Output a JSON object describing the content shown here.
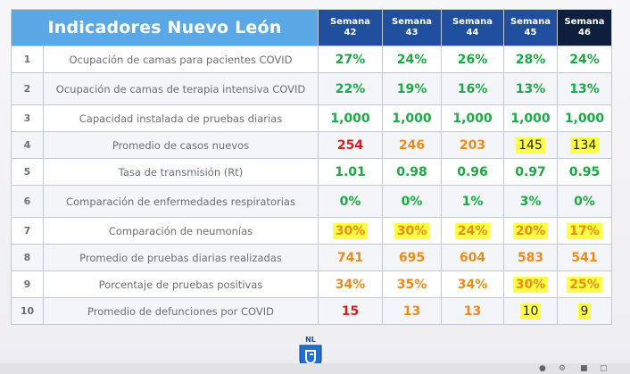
{
  "title": "Indicadores Nuevo León",
  "weeks": [
    {
      "label": "Semana",
      "num": "42"
    },
    {
      "label": "Semana",
      "num": "43"
    },
    {
      "label": "Semana",
      "num": "44"
    },
    {
      "label": "Semana",
      "num": "45"
    },
    {
      "label": "Semana",
      "num": "46"
    }
  ],
  "rows": [
    {
      "n": "1",
      "label": "Ocupación de camas para pacientes COVID",
      "values": [
        "27%",
        "24%",
        "26%",
        "28%",
        "24%"
      ],
      "colors": [
        "green",
        "green",
        "green",
        "green",
        "green"
      ],
      "highlight": [
        false,
        false,
        false,
        false,
        false
      ]
    },
    {
      "n": "2",
      "label": "Ocupación de camas de terapia intensiva COVID",
      "values": [
        "22%",
        "19%",
        "16%",
        "13%",
        "13%"
      ],
      "colors": [
        "green",
        "green",
        "green",
        "green",
        "green"
      ],
      "highlight": [
        false,
        false,
        false,
        false,
        false
      ]
    },
    {
      "n": "3",
      "label": "Capacidad instalada de pruebas diarias",
      "values": [
        "1,000",
        "1,000",
        "1,000",
        "1,000",
        "1,000"
      ],
      "colors": [
        "green",
        "green",
        "green",
        "green",
        "green"
      ],
      "highlight": [
        false,
        false,
        false,
        false,
        false
      ]
    },
    {
      "n": "4",
      "label": "Promedio de casos nuevos",
      "values": [
        "254",
        "246",
        "203",
        "145",
        "134"
      ],
      "colors": [
        "red",
        "orange",
        "orange",
        "dark",
        "dark"
      ],
      "highlight": [
        false,
        false,
        false,
        true,
        true
      ]
    },
    {
      "n": "5",
      "label": "Tasa de transmisión (Rt)",
      "values": [
        "1.01",
        "0.98",
        "0.96",
        "0.97",
        "0.95"
      ],
      "colors": [
        "green",
        "green",
        "green",
        "green",
        "green"
      ],
      "highlight": [
        false,
        false,
        false,
        false,
        false
      ]
    },
    {
      "n": "6",
      "label": "Comparación de enfermedades respiratorias",
      "values": [
        "0%",
        "0%",
        "1%",
        "3%",
        "0%"
      ],
      "colors": [
        "green",
        "green",
        "green",
        "green",
        "green"
      ],
      "highlight": [
        false,
        false,
        false,
        false,
        false
      ]
    },
    {
      "n": "7",
      "label": "Comparación de neumonías",
      "values": [
        "30%",
        "30%",
        "24%",
        "20%",
        "17%"
      ],
      "colors": [
        "orange",
        "orange",
        "orange",
        "orange",
        "orange"
      ],
      "highlight": [
        true,
        true,
        true,
        true,
        true
      ]
    },
    {
      "n": "8",
      "label": "Promedio de pruebas diarias realizadas",
      "values": [
        "741",
        "695",
        "604",
        "583",
        "541"
      ],
      "colors": [
        "orange",
        "orange",
        "orange",
        "orange",
        "orange"
      ],
      "highlight": [
        false,
        false,
        false,
        false,
        false
      ]
    },
    {
      "n": "9",
      "label": "Porcentaje de pruebas positivas",
      "values": [
        "34%",
        "35%",
        "34%",
        "30%",
        "25%"
      ],
      "colors": [
        "orange",
        "orange",
        "orange",
        "orange",
        "orange"
      ],
      "highlight": [
        false,
        false,
        false,
        true,
        true
      ]
    },
    {
      "n": "10",
      "label": "Promedio de defunciones por COVID",
      "values": [
        "15",
        "13",
        "13",
        "10",
        "9"
      ],
      "colors": [
        "red",
        "orange",
        "orange",
        "dark",
        "dark"
      ],
      "highlight": [
        false,
        false,
        false,
        true,
        true
      ]
    }
  ],
  "logo": {
    "text": "NL"
  },
  "colors": {
    "header_blue": "#5aa8e6",
    "week_blue": "#1f4f9e",
    "week_current": "#0d1f3d",
    "highlight_yellow": "#ffff45",
    "value_green": "#1aaa43",
    "value_red": "#d41f1f",
    "value_orange": "#ee8a18"
  }
}
